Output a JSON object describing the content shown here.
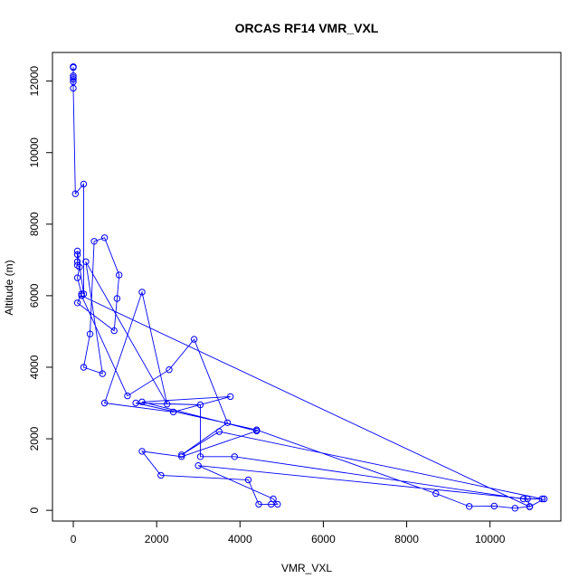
{
  "chart_data": {
    "type": "line",
    "title": "ORCAS RF14 VMR_VXL",
    "xlabel": "VMR_VXL",
    "ylabel": "Altitude (m)",
    "xlim": [
      -500,
      11700
    ],
    "ylim": [
      -300,
      12800
    ],
    "xticks": [
      0,
      2000,
      4000,
      6000,
      8000,
      10000
    ],
    "yticks": [
      0,
      2000,
      4000,
      6000,
      8000,
      10000,
      12000
    ],
    "grid": false,
    "line_color": "#0000ff",
    "marker": "open-circle",
    "series": [
      {
        "points": [
          [
            0,
            12400
          ],
          [
            0,
            12400
          ],
          [
            0,
            12380
          ],
          [
            0,
            12150
          ],
          [
            0,
            12100
          ],
          [
            0,
            12050
          ],
          [
            0,
            11980
          ],
          [
            0,
            11800
          ],
          [
            50,
            8850
          ],
          [
            250,
            9120
          ],
          [
            250,
            6050
          ],
          [
            100,
            7250
          ],
          [
            100,
            7150
          ],
          [
            100,
            6950
          ],
          [
            100,
            6850
          ],
          [
            150,
            6800
          ],
          [
            100,
            6500
          ],
          [
            200,
            6050
          ],
          [
            100,
            5800
          ],
          [
            980,
            5020
          ],
          [
            1050,
            5920
          ],
          [
            1100,
            6580
          ],
          [
            750,
            7620
          ],
          [
            500,
            7520
          ],
          [
            400,
            4930
          ],
          [
            250,
            4000
          ],
          [
            700,
            3820
          ],
          [
            300,
            6950
          ],
          [
            2250,
            2970
          ],
          [
            1650,
            6100
          ],
          [
            750,
            3000
          ],
          [
            2400,
            2750
          ],
          [
            3770,
            3180
          ],
          [
            1650,
            3030
          ],
          [
            4400,
            2220
          ],
          [
            2600,
            1500
          ],
          [
            1650,
            1650
          ],
          [
            2100,
            980
          ],
          [
            4200,
            850
          ],
          [
            4450,
            170
          ],
          [
            4750,
            170
          ],
          [
            4900,
            170
          ],
          [
            4800,
            320
          ],
          [
            3000,
            1250
          ],
          [
            10900,
            320
          ],
          [
            10950,
            110
          ],
          [
            10600,
            60
          ],
          [
            10100,
            120
          ],
          [
            9500,
            110
          ],
          [
            8700,
            470
          ],
          [
            4400,
            2250
          ],
          [
            1500,
            3000
          ],
          [
            3050,
            2950
          ],
          [
            3050,
            1500
          ],
          [
            3870,
            1500
          ],
          [
            10800,
            320
          ],
          [
            11250,
            320
          ],
          [
            3500,
            2200
          ],
          [
            2600,
            1550
          ],
          [
            3700,
            2450
          ],
          [
            2900,
            4780
          ],
          [
            2300,
            3930
          ],
          [
            1300,
            3200
          ],
          [
            200,
            6000
          ],
          [
            10950,
            100
          ],
          [
            11300,
            320
          ]
        ]
      }
    ]
  }
}
